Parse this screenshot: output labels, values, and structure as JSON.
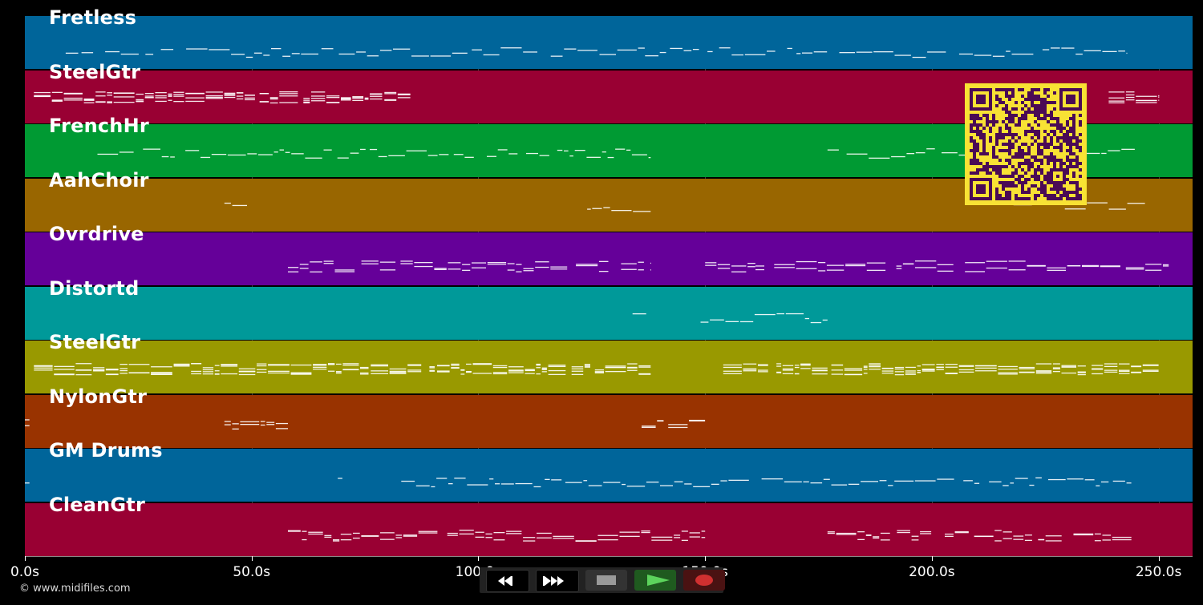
{
  "tracks": [
    {
      "name": "Fretless",
      "color": "#00659a"
    },
    {
      "name": "SteelGtr",
      "color": "#990033"
    },
    {
      "name": "FrenchHr",
      "color": "#009a33"
    },
    {
      "name": "AahChoir",
      "color": "#996600"
    },
    {
      "name": "Ovrdrive",
      "color": "#650099"
    },
    {
      "name": "Distortd",
      "color": "#009999"
    },
    {
      "name": "SteelGtr",
      "color": "#999900"
    },
    {
      "name": "NylonGtr",
      "color": "#993300"
    },
    {
      "name": "GM Drums",
      "color": "#00659a"
    },
    {
      "name": "CleanGtr",
      "color": "#990033"
    }
  ],
  "timeline": {
    "ticks": [
      "0.0s",
      "50.0s",
      "100.0s",
      "150.0s",
      "200.0s",
      "250.0s"
    ],
    "tick_values": [
      0,
      50,
      100,
      150,
      200,
      250
    ],
    "max_seconds": 257.5
  },
  "copyright": "© www.midifiles.com",
  "transport": {
    "rewind": "rewind-icon",
    "fast_forward": "fast-forward-icon",
    "stop": "stop-icon",
    "play": "play-icon",
    "record": "record-icon"
  },
  "colors": {
    "background": "#000000",
    "note": "#ffffff",
    "qr_background": "#f8e234",
    "qr_foreground": "#4a0a55"
  }
}
